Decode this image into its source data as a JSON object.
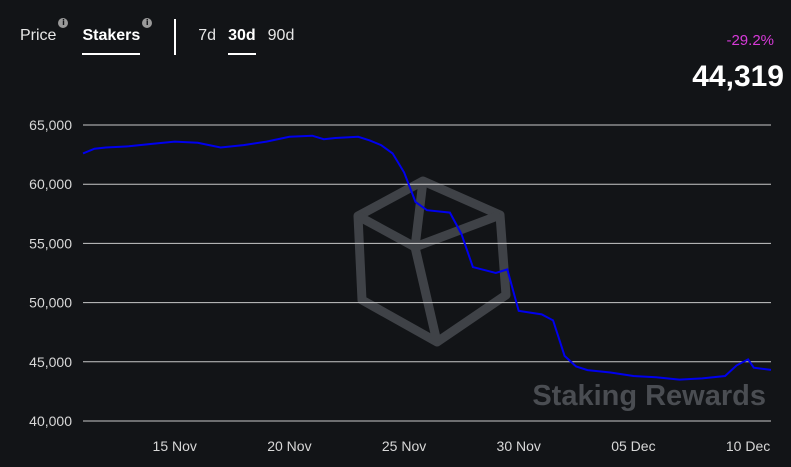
{
  "tabs": [
    {
      "label": "Price",
      "active": false
    },
    {
      "label": "Stakers",
      "active": true
    }
  ],
  "ranges": [
    {
      "label": "7d",
      "active": false
    },
    {
      "label": "30d",
      "active": true
    },
    {
      "label": "90d",
      "active": false
    }
  ],
  "info_glyph": "i",
  "change_pct": "-29.2%",
  "current_value": "44,319",
  "watermark": "Staking Rewards",
  "colors": {
    "line": "#0000ee",
    "change": "#d63ad8",
    "background": "#121417",
    "grid": "#c8c8c8"
  },
  "chart_data": {
    "type": "line",
    "title": "",
    "xlabel": "",
    "ylabel": "",
    "ylim": [
      40000,
      65000
    ],
    "x_range": [
      "2021-11-11",
      "2021-12-11"
    ],
    "yticks": [
      "65,000",
      "60,000",
      "55,000",
      "50,000",
      "45,000",
      "40,000"
    ],
    "xticks": [
      {
        "label": "15 Nov",
        "date": "2021-11-15"
      },
      {
        "label": "20 Nov",
        "date": "2021-11-20"
      },
      {
        "label": "25 Nov",
        "date": "2021-11-25"
      },
      {
        "label": "30 Nov",
        "date": "2021-11-30"
      },
      {
        "label": "05 Dec",
        "date": "2021-12-05"
      },
      {
        "label": "10 Dec",
        "date": "2021-12-10"
      }
    ],
    "grid": true,
    "series": [
      {
        "values": [
          [
            "2021-11-11",
            62600
          ],
          [
            "2021-11-11T12",
            63000
          ],
          [
            "2021-11-12",
            63100
          ],
          [
            "2021-11-13",
            63200
          ],
          [
            "2021-11-14",
            63400
          ],
          [
            "2021-11-15",
            63600
          ],
          [
            "2021-11-16",
            63500
          ],
          [
            "2021-11-17",
            63100
          ],
          [
            "2021-11-18",
            63300
          ],
          [
            "2021-11-19",
            63600
          ],
          [
            "2021-11-20",
            64000
          ],
          [
            "2021-11-21",
            64100
          ],
          [
            "2021-11-21T12",
            63800
          ],
          [
            "2021-11-22",
            63900
          ],
          [
            "2021-11-23",
            64000
          ],
          [
            "2021-11-23T12",
            63700
          ],
          [
            "2021-11-24",
            63300
          ],
          [
            "2021-11-24T12",
            62600
          ],
          [
            "2021-11-25",
            61000
          ],
          [
            "2021-11-25T12",
            58500
          ],
          [
            "2021-11-26",
            57800
          ],
          [
            "2021-11-27",
            57600
          ],
          [
            "2021-11-27T12",
            55800
          ],
          [
            "2021-11-28",
            53000
          ],
          [
            "2021-11-29",
            52500
          ],
          [
            "2021-11-29T12",
            52800
          ],
          [
            "2021-11-30",
            49300
          ],
          [
            "2021-12-01",
            49000
          ],
          [
            "2021-12-01T12",
            48500
          ],
          [
            "2021-12-02",
            45500
          ],
          [
            "2021-12-02T12",
            44600
          ],
          [
            "2021-12-03",
            44300
          ],
          [
            "2021-12-04",
            44100
          ],
          [
            "2021-12-05",
            43800
          ],
          [
            "2021-12-06",
            43700
          ],
          [
            "2021-12-07",
            43500
          ],
          [
            "2021-12-08",
            43600
          ],
          [
            "2021-12-09",
            43800
          ],
          [
            "2021-12-09T12",
            44700
          ],
          [
            "2021-12-10",
            45200
          ],
          [
            "2021-12-10T06",
            44500
          ],
          [
            "2021-12-11",
            44319
          ]
        ]
      }
    ]
  }
}
